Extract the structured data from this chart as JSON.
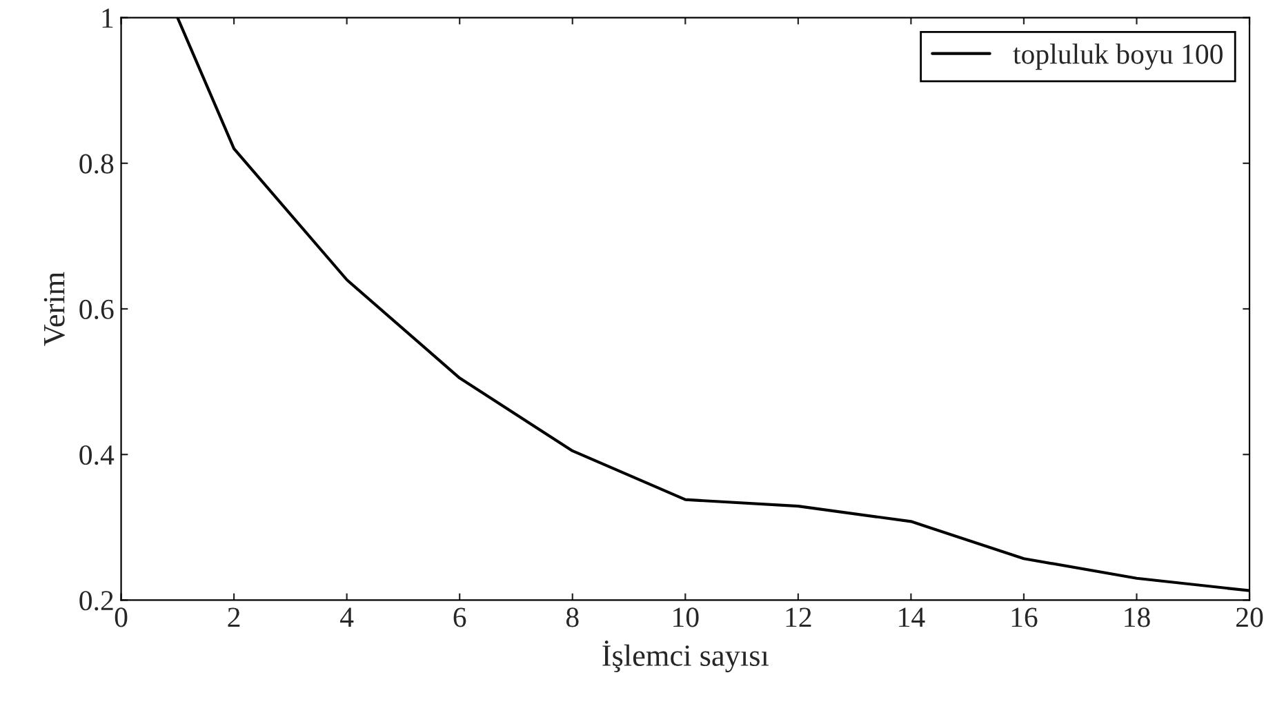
{
  "chart_data": {
    "type": "line",
    "xlabel": "İşlemci sayısı",
    "ylabel": "Verim",
    "x": [
      1,
      2,
      4,
      6,
      8,
      10,
      12,
      14,
      16,
      18,
      20
    ],
    "series": [
      {
        "name": "topluluk boyu 100",
        "color": "#000000",
        "values": [
          1.0,
          0.82,
          0.64,
          0.505,
          0.405,
          0.338,
          0.329,
          0.308,
          0.257,
          0.23,
          0.213
        ]
      }
    ],
    "xlim": [
      0,
      20
    ],
    "xticks": [
      0,
      2,
      4,
      6,
      8,
      10,
      12,
      14,
      16,
      18,
      20
    ],
    "ylim": [
      0.2,
      1
    ],
    "yticks": [
      0.2,
      0.4,
      0.6,
      0.8,
      1
    ],
    "grid": false,
    "legend": "top right",
    "marker": "none",
    "line_style": "solid"
  }
}
